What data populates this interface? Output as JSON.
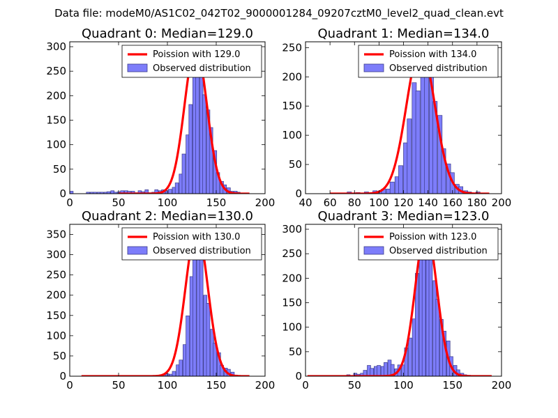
{
  "suptitle": "Data file: modeM0/AS1C02_042T02_9000001284_09207cztM0_level2_quad_clean.evt",
  "chart_data": [
    {
      "type": "bar",
      "title": "Quadrant 0: Median=129.0",
      "xlim": [
        0,
        200
      ],
      "ylim": [
        0,
        310
      ],
      "xticks": [
        0,
        50,
        100,
        150,
        200
      ],
      "yticks": [
        0,
        50,
        100,
        150,
        200,
        250,
        300
      ],
      "legend": [
        "Poission with 129.0",
        "Observed distribution"
      ],
      "legend_position": "upper-right",
      "mean": 129.0,
      "peak": 300,
      "sigma": 11.4,
      "curve_x_range": [
        50,
        184
      ],
      "bin_width": 3.5,
      "bins": [
        [
          0,
          5
        ],
        [
          17,
          3
        ],
        [
          21,
          3
        ],
        [
          24,
          3
        ],
        [
          28,
          3
        ],
        [
          31,
          3
        ],
        [
          35,
          3
        ],
        [
          38,
          4
        ],
        [
          42,
          6
        ],
        [
          45,
          3
        ],
        [
          49,
          4
        ],
        [
          52,
          6
        ],
        [
          56,
          6
        ],
        [
          59,
          5
        ],
        [
          63,
          5
        ],
        [
          66,
          2
        ],
        [
          70,
          6
        ],
        [
          73,
          4
        ],
        [
          77,
          8
        ],
        [
          80,
          2
        ],
        [
          84,
          3
        ],
        [
          87,
          8
        ],
        [
          91,
          6
        ],
        [
          94,
          8
        ],
        [
          98,
          6
        ],
        [
          101,
          9
        ],
        [
          105,
          13
        ],
        [
          108,
          22
        ],
        [
          112,
          40
        ],
        [
          115,
          81
        ],
        [
          119,
          120
        ],
        [
          122,
          182
        ],
        [
          126,
          282
        ],
        [
          129,
          253
        ],
        [
          133,
          288
        ],
        [
          136,
          202
        ],
        [
          140,
          171
        ],
        [
          143,
          135
        ],
        [
          147,
          88
        ],
        [
          150,
          43
        ],
        [
          154,
          25
        ],
        [
          157,
          18
        ],
        [
          161,
          12
        ],
        [
          164,
          5
        ],
        [
          168,
          5
        ],
        [
          171,
          3
        ]
      ]
    },
    {
      "type": "bar",
      "title": "Quadrant 1: Median=134.0",
      "xlim": [
        40,
        200
      ],
      "ylim": [
        0,
        260
      ],
      "xticks": [
        40,
        60,
        80,
        100,
        120,
        140,
        160,
        180,
        200
      ],
      "yticks": [
        0,
        50,
        100,
        150,
        200,
        250
      ],
      "legend": [
        "Poission with 134.0",
        "Observed distribution"
      ],
      "legend_position": "upper-right",
      "mean": 134.0,
      "peak": 250,
      "sigma": 11.6,
      "curve_x_range": [
        60,
        190
      ],
      "bin_width": 3.5,
      "bins": [
        [
          74,
          3
        ],
        [
          81,
          2
        ],
        [
          88,
          3
        ],
        [
          95,
          5
        ],
        [
          99,
          3
        ],
        [
          102,
          8
        ],
        [
          106,
          8
        ],
        [
          109,
          20
        ],
        [
          113,
          29
        ],
        [
          116,
          48
        ],
        [
          120,
          87
        ],
        [
          123,
          128
        ],
        [
          127,
          190
        ],
        [
          130,
          176
        ],
        [
          134,
          210
        ],
        [
          137,
          218
        ],
        [
          141,
          201
        ],
        [
          144,
          158
        ],
        [
          148,
          134
        ],
        [
          151,
          77
        ],
        [
          155,
          51
        ],
        [
          158,
          36
        ],
        [
          162,
          16
        ],
        [
          165,
          12
        ],
        [
          169,
          5
        ],
        [
          172,
          3
        ],
        [
          179,
          3
        ]
      ]
    },
    {
      "type": "bar",
      "title": "Quadrant 2: Median=130.0",
      "xlim": [
        0,
        200
      ],
      "ylim": [
        0,
        375
      ],
      "xticks": [
        0,
        50,
        100,
        150,
        200
      ],
      "yticks": [
        0,
        50,
        100,
        150,
        200,
        250,
        300,
        350
      ],
      "legend": [
        "Poission with 130.0",
        "Observed distribution"
      ],
      "legend_position": "upper-right",
      "mean": 130.0,
      "peak": 363,
      "sigma": 11.4,
      "curve_x_range": [
        12,
        184
      ],
      "bin_width": 3.5,
      "bins": [
        [
          84,
          2
        ],
        [
          95,
          3
        ],
        [
          98,
          6
        ],
        [
          102,
          5
        ],
        [
          105,
          12
        ],
        [
          109,
          28
        ],
        [
          112,
          40
        ],
        [
          116,
          78
        ],
        [
          119,
          149
        ],
        [
          123,
          246
        ],
        [
          126,
          327
        ],
        [
          130,
          301
        ],
        [
          133,
          310
        ],
        [
          137,
          200
        ],
        [
          140,
          180
        ],
        [
          144,
          116
        ],
        [
          147,
          82
        ],
        [
          151,
          58
        ],
        [
          154,
          27
        ],
        [
          158,
          20
        ],
        [
          161,
          17
        ],
        [
          165,
          10
        ],
        [
          168,
          3
        ]
      ]
    },
    {
      "type": "bar",
      "title": "Quadrant 3: Median=123.0",
      "xlim": [
        0,
        200
      ],
      "ylim": [
        0,
        310
      ],
      "xticks": [
        0,
        50,
        100,
        150,
        200
      ],
      "yticks": [
        0,
        50,
        100,
        150,
        200,
        250,
        300
      ],
      "legend": [
        "Poission with 123.0",
        "Observed distribution"
      ],
      "legend_position": "upper-right",
      "mean": 123.0,
      "peak": 300,
      "sigma": 11.0,
      "curve_x_range": [
        2,
        190
      ],
      "bin_width": 3.5,
      "bins": [
        [
          42,
          3
        ],
        [
          49,
          6
        ],
        [
          52,
          4
        ],
        [
          56,
          6
        ],
        [
          59,
          12
        ],
        [
          63,
          22
        ],
        [
          66,
          16
        ],
        [
          70,
          20
        ],
        [
          73,
          22
        ],
        [
          77,
          20
        ],
        [
          80,
          28
        ],
        [
          84,
          33
        ],
        [
          87,
          24
        ],
        [
          91,
          15
        ],
        [
          94,
          23
        ],
        [
          98,
          23
        ],
        [
          101,
          58
        ],
        [
          105,
          78
        ],
        [
          109,
          117
        ],
        [
          112,
          210
        ],
        [
          116,
          251
        ],
        [
          119,
          262
        ],
        [
          123,
          301
        ],
        [
          126,
          293
        ],
        [
          130,
          195
        ],
        [
          133,
          157
        ],
        [
          137,
          116
        ],
        [
          140,
          92
        ],
        [
          144,
          72
        ],
        [
          147,
          40
        ],
        [
          151,
          22
        ],
        [
          154,
          13
        ],
        [
          158,
          6
        ],
        [
          161,
          3
        ],
        [
          165,
          2
        ]
      ]
    }
  ]
}
